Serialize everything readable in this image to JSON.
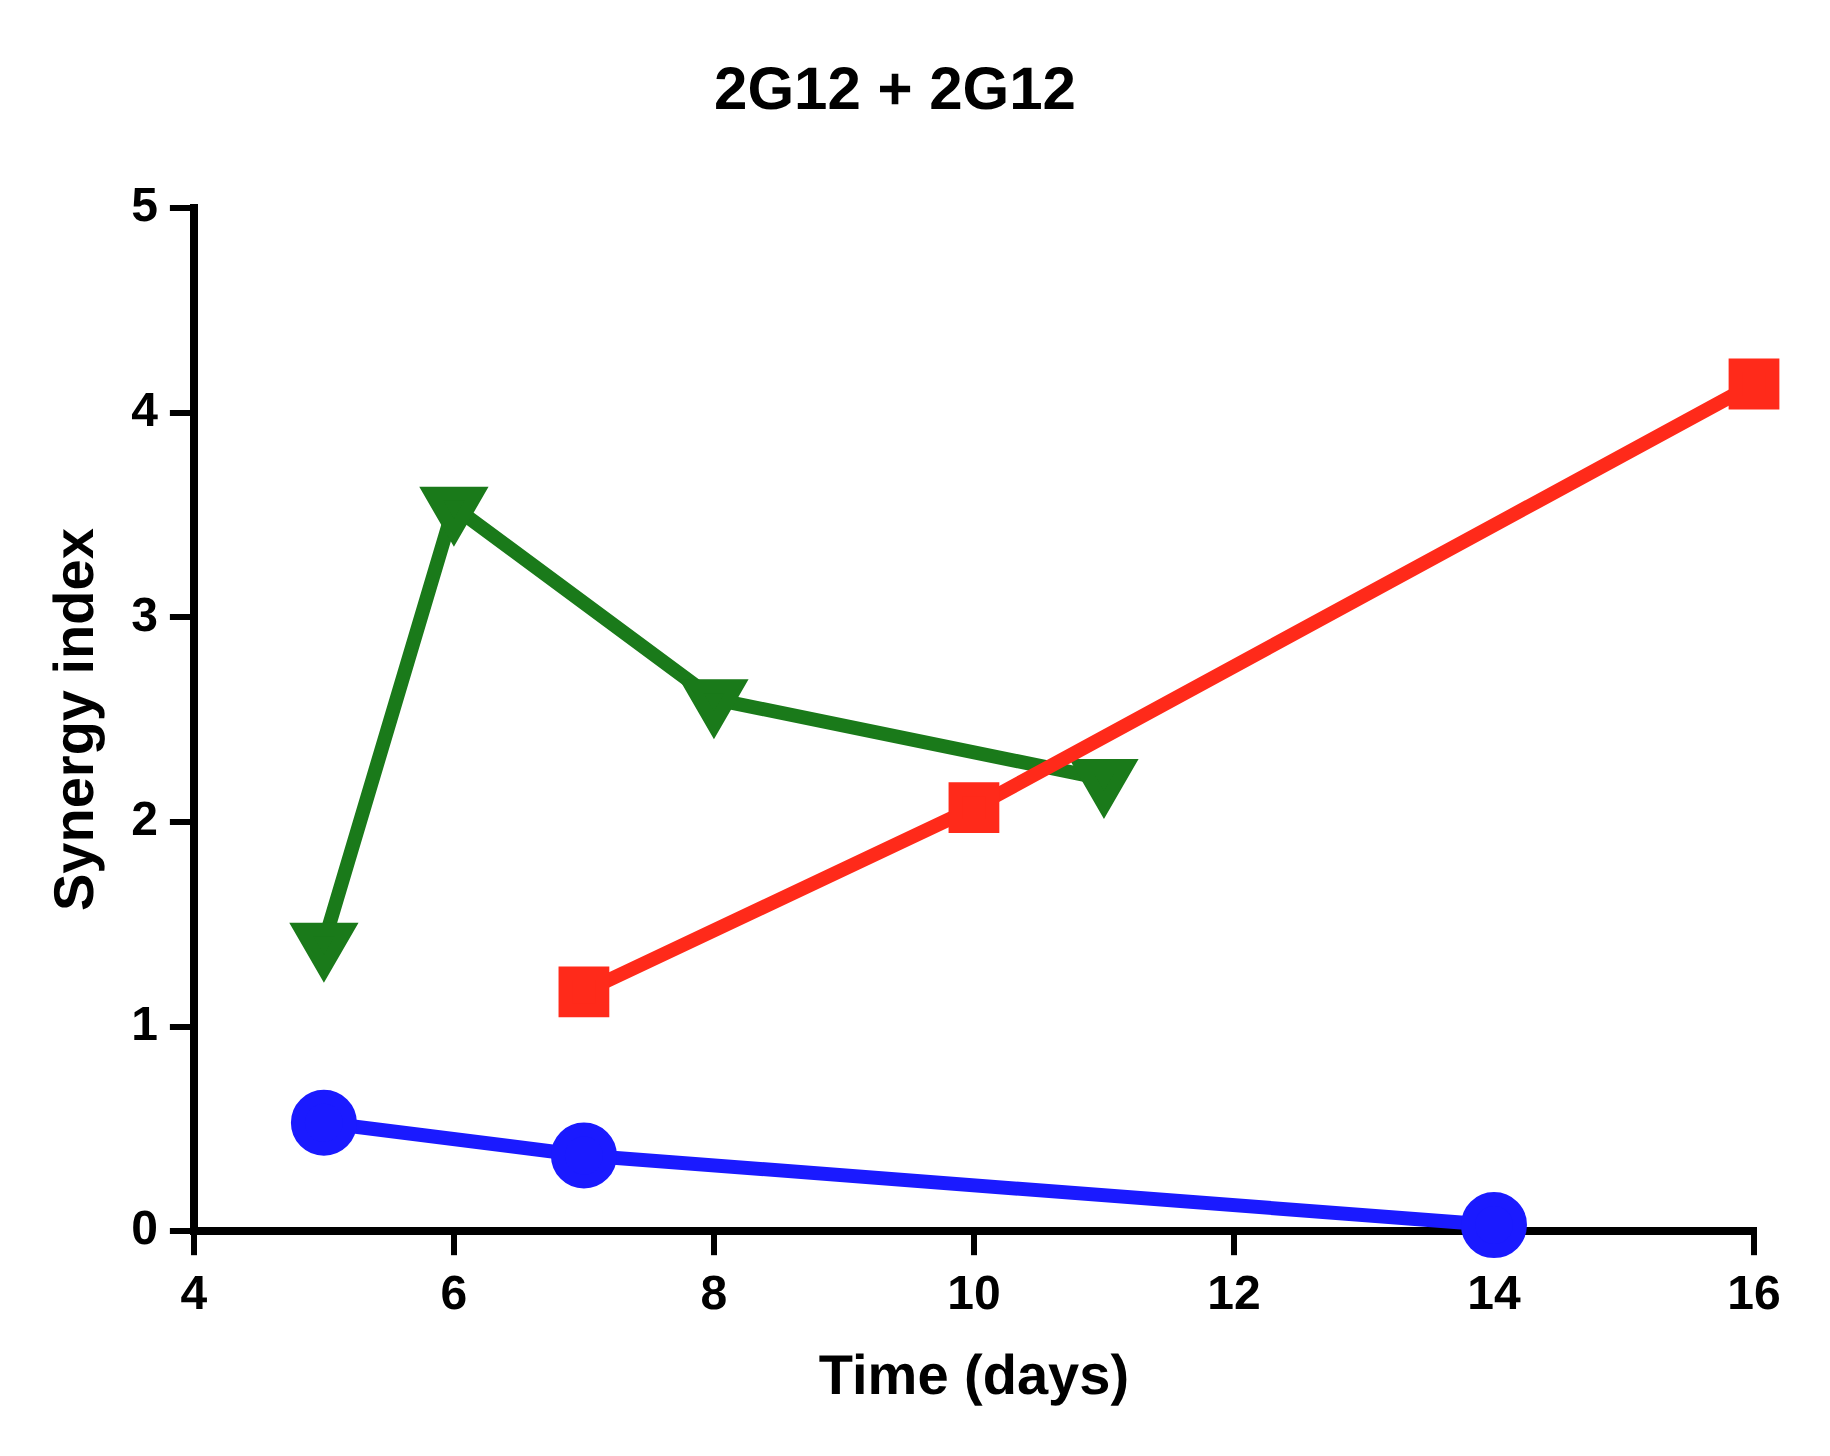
{
  "chart_data": {
    "type": "line",
    "title": "2G12 + 2G12",
    "xlabel": "Time (days)",
    "ylabel": "Synergy index",
    "xlim": [
      4,
      16
    ],
    "xticks": [
      4,
      6,
      8,
      10,
      12,
      14,
      16
    ],
    "ylim": [
      0,
      5
    ],
    "yticks": [
      0,
      1,
      2,
      3,
      4,
      5
    ],
    "grid": false,
    "legend": false,
    "line_style": "solid",
    "series": [
      {
        "color": "#1a1aff",
        "marker": "circle",
        "x": [
          5,
          7,
          14
        ],
        "values": [
          0.53,
          0.37,
          0.03
        ]
      },
      {
        "color": "#ff2a1a",
        "marker": "square",
        "x": [
          7,
          10,
          16
        ],
        "values": [
          1.17,
          2.07,
          4.14
        ]
      },
      {
        "color": "#1a7a1a",
        "marker": "triangle",
        "x": [
          5,
          6,
          8,
          11
        ],
        "values": [
          1.41,
          3.54,
          2.6,
          2.21
        ]
      }
    ]
  }
}
